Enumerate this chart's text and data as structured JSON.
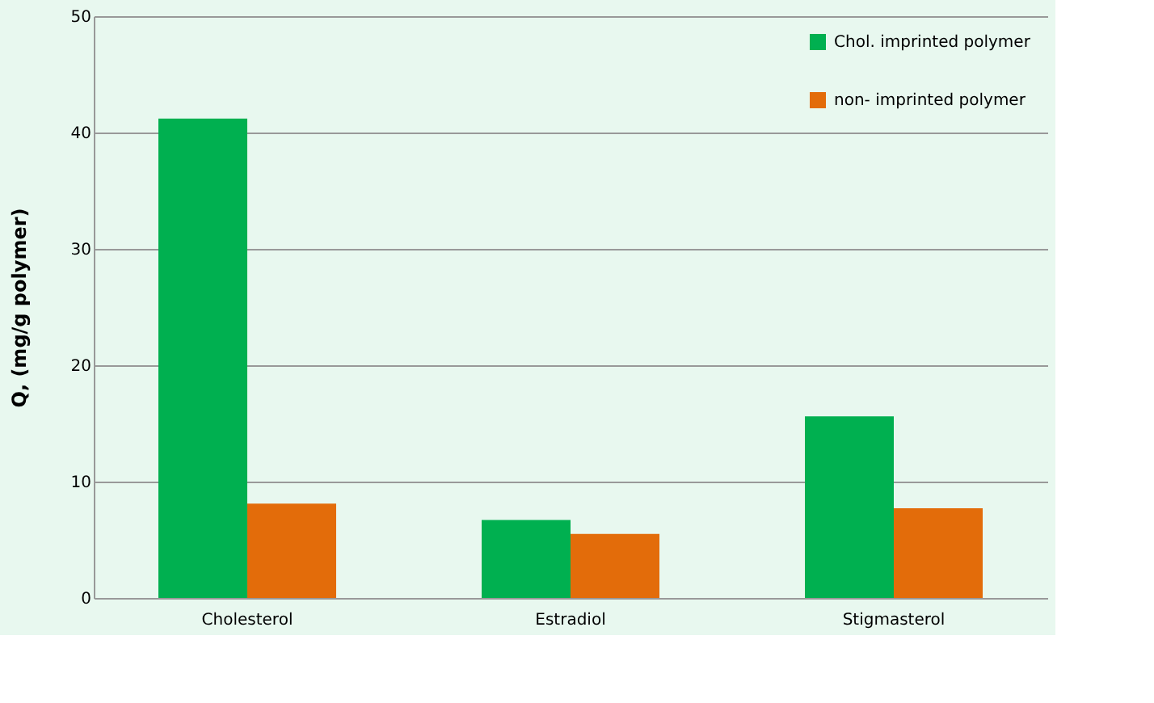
{
  "chart_data": {
    "type": "bar",
    "ylabel": "Q, (mg/g polymer)",
    "categories": [
      "Cholesterol",
      "Estradiol",
      "Stigmasterol"
    ],
    "series": [
      {
        "name": "Chol. imprinted polymer",
        "color": "#00b050",
        "values": [
          41.2,
          6.7,
          15.6
        ]
      },
      {
        "name": "non- imprinted polymer",
        "color": "#e36c0a",
        "values": [
          8.1,
          5.5,
          7.7
        ]
      }
    ],
    "ylim": [
      0,
      50
    ],
    "yticks": [
      0,
      10,
      20,
      30,
      40,
      50
    ],
    "grid": "y",
    "legend": "top right"
  }
}
